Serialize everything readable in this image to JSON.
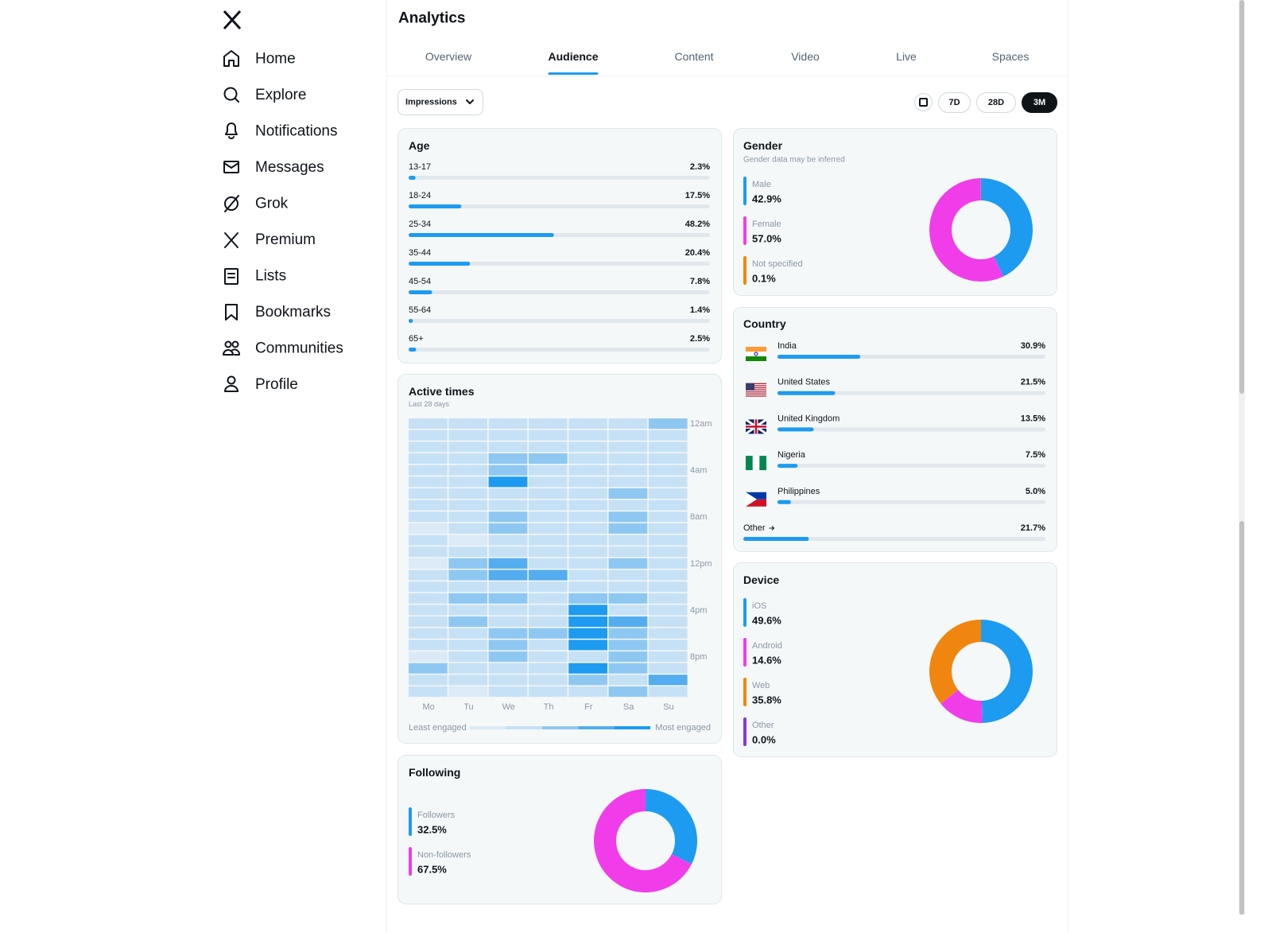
{
  "sidebar": {
    "nav": [
      "Home",
      "Explore",
      "Notifications",
      "Messages",
      "Grok",
      "Premium",
      "Lists",
      "Bookmarks",
      "Communities",
      "Profile"
    ]
  },
  "header": {
    "title": "Analytics",
    "tabs": [
      "Overview",
      "Audience",
      "Content",
      "Video",
      "Live",
      "Spaces"
    ],
    "active_tab": "Audience"
  },
  "toolbar": {
    "metric": "Impressions",
    "ranges": [
      "7D",
      "28D",
      "3M"
    ],
    "selected_range": "3M"
  },
  "age": {
    "title": "Age",
    "xlim": [
      0,
      100
    ],
    "color": "#1d9bf0",
    "rows": [
      {
        "label": "13-17",
        "value": 2.3,
        "value_label": "2.3%"
      },
      {
        "label": "18-24",
        "value": 17.5,
        "value_label": "17.5%"
      },
      {
        "label": "25-34",
        "value": 48.2,
        "value_label": "48.2%"
      },
      {
        "label": "35-44",
        "value": 20.4,
        "value_label": "20.4%"
      },
      {
        "label": "45-54",
        "value": 7.8,
        "value_label": "7.8%"
      },
      {
        "label": "55-64",
        "value": 1.4,
        "value_label": "1.4%"
      },
      {
        "label": "65+",
        "value": 2.5,
        "value_label": "2.5%"
      }
    ]
  },
  "active_times": {
    "title": "Active times",
    "subtitle": "Last 28 days",
    "days": [
      "Mo",
      "Tu",
      "We",
      "Th",
      "Fr",
      "Sa",
      "Su"
    ],
    "hour_ticks": [
      {
        "value": 0,
        "label": "12am"
      },
      {
        "value": 4,
        "label": "4am"
      },
      {
        "value": 8,
        "label": "8am"
      },
      {
        "value": 12,
        "label": "12pm"
      },
      {
        "value": 16,
        "label": "4pm"
      },
      {
        "value": 20,
        "label": "8pm"
      }
    ],
    "level_colors": [
      "#dbeaf6",
      "#c6e1f6",
      "#8ec8f2",
      "#53adef",
      "#1d9bf0"
    ],
    "levels": [
      [
        1,
        1,
        1,
        1,
        1,
        1,
        1,
        1,
        1,
        0,
        1,
        1,
        0,
        1,
        1,
        1,
        1,
        1,
        1,
        1,
        0,
        2,
        1,
        1
      ],
      [
        1,
        1,
        1,
        1,
        1,
        1,
        1,
        1,
        1,
        1,
        0,
        1,
        2,
        2,
        1,
        2,
        1,
        2,
        1,
        1,
        1,
        1,
        1,
        0
      ],
      [
        1,
        1,
        1,
        2,
        2,
        4,
        1,
        1,
        2,
        2,
        1,
        1,
        3,
        3,
        1,
        2,
        1,
        1,
        2,
        2,
        2,
        1,
        1,
        1
      ],
      [
        1,
        1,
        1,
        2,
        1,
        1,
        1,
        1,
        1,
        1,
        1,
        1,
        1,
        3,
        1,
        1,
        1,
        1,
        2,
        1,
        1,
        1,
        1,
        1
      ],
      [
        1,
        1,
        1,
        1,
        1,
        1,
        1,
        1,
        1,
        1,
        1,
        1,
        1,
        1,
        1,
        2,
        4,
        4,
        4,
        4,
        1,
        4,
        2,
        1
      ],
      [
        1,
        1,
        1,
        1,
        1,
        1,
        2,
        1,
        2,
        2,
        1,
        1,
        2,
        1,
        1,
        2,
        1,
        3,
        2,
        2,
        2,
        2,
        1,
        2
      ],
      [
        2,
        1,
        1,
        1,
        1,
        1,
        1,
        1,
        1,
        1,
        1,
        1,
        1,
        1,
        1,
        1,
        1,
        1,
        1,
        1,
        1,
        1,
        3,
        1
      ]
    ],
    "legend_low": "Least engaged",
    "legend_high": "Most engaged"
  },
  "following": {
    "title": "Following",
    "segments": [
      {
        "name": "Followers",
        "value": 32.5,
        "value_label": "32.5%",
        "color": "#1d9bf0"
      },
      {
        "name": "Non-followers",
        "value": 67.5,
        "value_label": "67.5%",
        "color": "#f13cea"
      }
    ]
  },
  "gender": {
    "title": "Gender",
    "subtitle": "Gender data may be inferred",
    "segments": [
      {
        "name": "Male",
        "value": 42.9,
        "value_label": "42.9%",
        "color": "#1d9bf0"
      },
      {
        "name": "Female",
        "value": 57.0,
        "value_label": "57.0%",
        "color": "#f13cea"
      },
      {
        "name": "Not specified",
        "value": 0.1,
        "value_label": "0.1%",
        "color": "#f0860f"
      }
    ]
  },
  "country": {
    "title": "Country",
    "xlim": [
      0,
      100
    ],
    "color": "#1d9bf0",
    "rows": [
      {
        "label": "India",
        "value": 30.9,
        "value_label": "30.9%"
      },
      {
        "label": "United States",
        "value": 21.5,
        "value_label": "21.5%"
      },
      {
        "label": "United Kingdom",
        "value": 13.5,
        "value_label": "13.5%"
      },
      {
        "label": "Nigeria",
        "value": 7.5,
        "value_label": "7.5%"
      },
      {
        "label": "Philippines",
        "value": 5.0,
        "value_label": "5.0%"
      }
    ],
    "other": {
      "label": "Other",
      "value": 21.7,
      "value_label": "21.7%"
    }
  },
  "device": {
    "title": "Device",
    "segments": [
      {
        "name": "iOS",
        "value": 49.6,
        "value_label": "49.6%",
        "color": "#1d9bf0"
      },
      {
        "name": "Android",
        "value": 14.6,
        "value_label": "14.6%",
        "color": "#f13cea"
      },
      {
        "name": "Web",
        "value": 35.8,
        "value_label": "35.8%",
        "color": "#f0860f"
      },
      {
        "name": "Other",
        "value": 0.0,
        "value_label": "0.0%",
        "color": "#7e3ae8"
      }
    ]
  }
}
